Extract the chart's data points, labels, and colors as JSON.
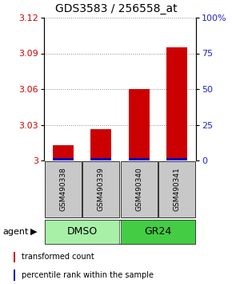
{
  "title": "GDS3583 / 256558_at",
  "samples": [
    "GSM490338",
    "GSM490339",
    "GSM490340",
    "GSM490341"
  ],
  "red_values": [
    3.013,
    3.026,
    3.06,
    3.095
  ],
  "blue_pct": [
    1.5,
    1.5,
    1.5,
    1.5
  ],
  "groups": [
    {
      "label": "DMSO",
      "indices": [
        0,
        1
      ],
      "color": "#90EE90"
    },
    {
      "label": "GR24",
      "indices": [
        2,
        3
      ],
      "color": "#3CC83C"
    }
  ],
  "ylim_left": [
    3.0,
    3.12
  ],
  "ylim_right": [
    0,
    100
  ],
  "yticks_left": [
    3.0,
    3.03,
    3.06,
    3.09,
    3.12
  ],
  "yticks_right": [
    0,
    25,
    50,
    75,
    100
  ],
  "red_color": "#CC0000",
  "blue_color": "#0000BB",
  "bg_color": "#ffffff",
  "legend_red": "transformed count",
  "legend_blue": "percentile rank within the sample",
  "title_fontsize": 10,
  "tick_fontsize": 8,
  "sample_fontsize": 6.5,
  "group_fontsize": 9,
  "legend_fontsize": 7
}
